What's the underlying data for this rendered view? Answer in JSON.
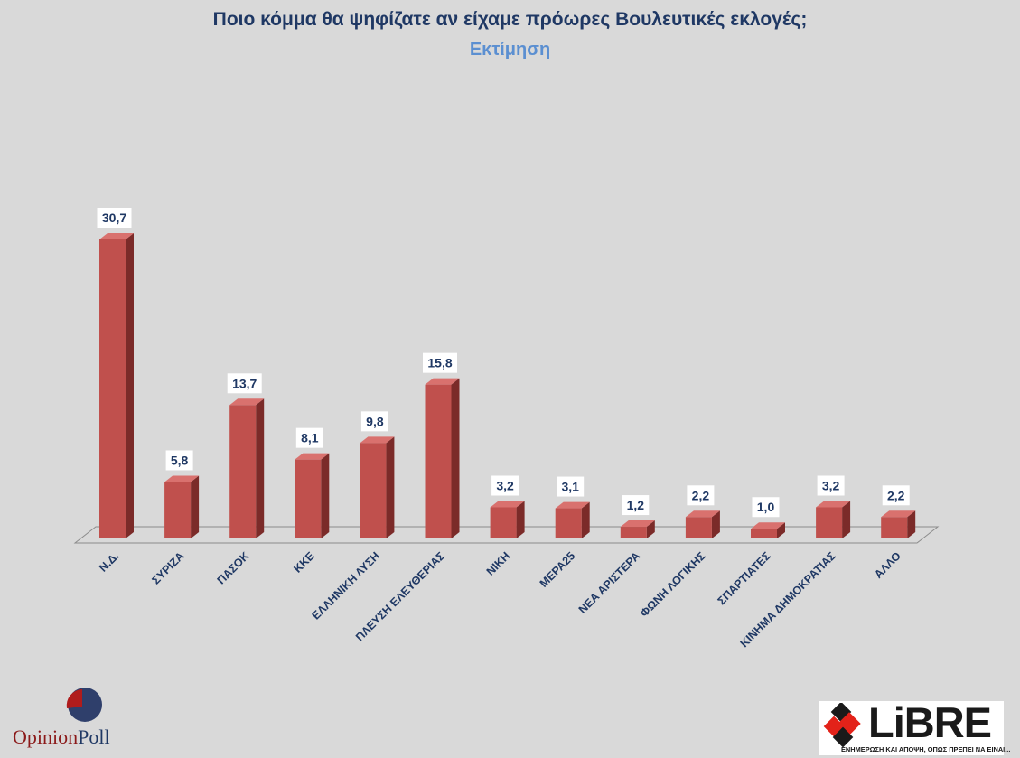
{
  "chart_data": {
    "type": "bar",
    "title": "Ποιο κόμμα θα ψηφίζατε αν είχαμε πρόωρες Βουλευτικές εκλογές;",
    "subtitle": "Εκτίμηση",
    "categories": [
      "Ν.Δ.",
      "ΣΥΡΙΖΑ",
      "ΠΑΣΟΚ",
      "ΚΚΕ",
      "ΕΛΛΗΝΙΚΗ ΛΥΣΗ",
      "ΠΛΕΥΣΗ ΕΛΕΥΘΕΡΙΑΣ",
      "ΝΙΚΗ",
      "ΜΕΡΑ25",
      "ΝΕΑ ΑΡΙΣΤΕΡΑ",
      "ΦΩΝΗ ΛΟΓΙΚΗΣ",
      "ΣΠΑΡΤΙΑΤΕΣ",
      "ΚΙΝΗΜΑ ΔΗΜΟΚΡΑΤΙΑΣ",
      "ΑΛΛΟ"
    ],
    "values": [
      30.7,
      5.8,
      13.7,
      8.1,
      9.8,
      15.8,
      3.2,
      3.1,
      1.2,
      2.2,
      1.0,
      3.2,
      2.2
    ],
    "value_labels": [
      "30,7",
      "5,8",
      "13,7",
      "8,1",
      "9,8",
      "15,8",
      "3,2",
      "3,1",
      "1,2",
      "2,2",
      "1,0",
      "3,2",
      "2,2"
    ],
    "ylim": [
      0,
      30.7
    ],
    "grid": false,
    "legend": "none",
    "bar_color": "#c0504d",
    "bar_side_color": "#7b2b29",
    "bar_top_color": "#d9716e"
  },
  "branding": {
    "pollster_part1": "Opinion",
    "pollster_part2": "Poll",
    "publisher_logo_text": "LiBRE",
    "publisher_tagline": "ΕΝΗΜΕΡΩΣΗ ΚΑΙ ΑΠΟΨΗ, ΟΠΩΣ ΠΡΕΠΕΙ ΝΑ ΕΙΝΑΙ..."
  }
}
